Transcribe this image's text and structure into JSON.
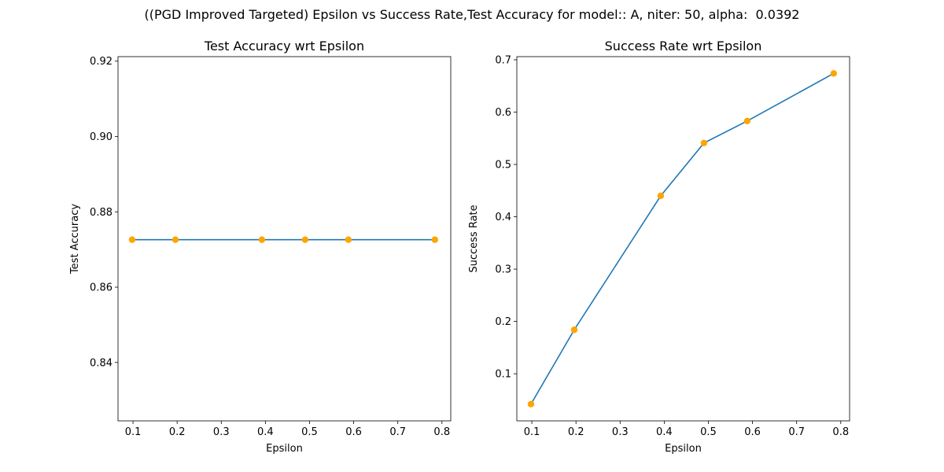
{
  "figure": {
    "suptitle": "((PGD Improved Targeted) Epsilon vs Success Rate,Test Accuracy for model:: A, niter: 50, alpha:  0.0392"
  },
  "chart_data": [
    {
      "type": "line",
      "title": "Test Accuracy wrt Epsilon",
      "xlabel": "Epsilon",
      "ylabel": "Test Accuracy",
      "xlim": [
        0.066,
        0.82
      ],
      "ylim": [
        0.8245,
        0.9212
      ],
      "xticks": [
        0.1,
        0.2,
        0.3,
        0.4,
        0.5,
        0.6,
        0.7,
        0.8
      ],
      "xtick_labels": [
        "0.1",
        "0.2",
        "0.3",
        "0.4",
        "0.5",
        "0.6",
        "0.7",
        "0.8"
      ],
      "yticks": [
        0.84,
        0.86,
        0.88,
        0.9,
        0.92
      ],
      "ytick_labels": [
        "0.84",
        "0.86",
        "0.88",
        "0.90",
        "0.92"
      ],
      "x": [
        0.098,
        0.196,
        0.392,
        0.49,
        0.588,
        0.784
      ],
      "y": [
        0.8726,
        0.8726,
        0.8726,
        0.8726,
        0.8726,
        0.8726
      ],
      "line_color": "#1f77b4",
      "marker_color": "#ffa500",
      "grid": false
    },
    {
      "type": "line",
      "title": "Success Rate wrt Epsilon",
      "xlabel": "Epsilon",
      "ylabel": "Success Rate",
      "xlim": [
        0.066,
        0.82
      ],
      "ylim": [
        0.01,
        0.706
      ],
      "xticks": [
        0.1,
        0.2,
        0.3,
        0.4,
        0.5,
        0.6,
        0.7,
        0.8
      ],
      "xtick_labels": [
        "0.1",
        "0.2",
        "0.3",
        "0.4",
        "0.5",
        "0.6",
        "0.7",
        "0.8"
      ],
      "yticks": [
        0.1,
        0.2,
        0.3,
        0.4,
        0.5,
        0.6,
        0.7
      ],
      "ytick_labels": [
        "0.1",
        "0.2",
        "0.3",
        "0.4",
        "0.5",
        "0.6",
        "0.7"
      ],
      "x": [
        0.098,
        0.196,
        0.392,
        0.49,
        0.588,
        0.784
      ],
      "y": [
        0.042,
        0.184,
        0.44,
        0.541,
        0.583,
        0.674
      ],
      "line_color": "#1f77b4",
      "marker_color": "#ffa500",
      "grid": false
    }
  ]
}
